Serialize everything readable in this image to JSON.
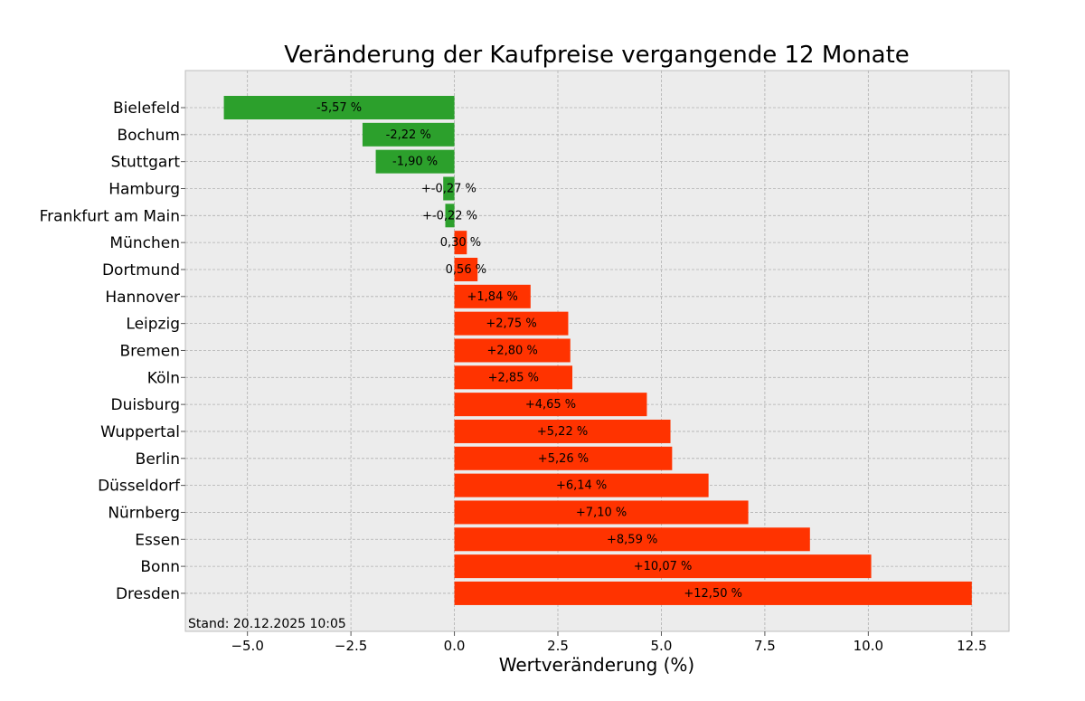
{
  "chart_data": {
    "type": "bar",
    "orientation": "horizontal",
    "title": "Veränderung der Kaufpreise vergangende 12 Monate",
    "xlabel": "Wertveränderung (%)",
    "ylabel": "",
    "xlim": [
      -6.5,
      13.4
    ],
    "xticks": [
      -5.0,
      -2.5,
      0.0,
      2.5,
      5.0,
      7.5,
      10.0,
      12.5
    ],
    "xtick_labels": [
      "−5.0",
      "−2.5",
      "0.0",
      "2.5",
      "5.0",
      "7.5",
      "10.0",
      "12.5"
    ],
    "grid": true,
    "categories": [
      "Bielefeld",
      "Bochum",
      "Stuttgart",
      "Hamburg",
      "Frankfurt am Main",
      "München",
      "Dortmund",
      "Hannover",
      "Leipzig",
      "Bremen",
      "Köln",
      "Duisburg",
      "Wuppertal",
      "Berlin",
      "Düsseldorf",
      "Nürnberg",
      "Essen",
      "Bonn",
      "Dresden"
    ],
    "values": [
      -5.57,
      -2.22,
      -1.9,
      -0.27,
      -0.22,
      0.3,
      0.56,
      1.84,
      2.75,
      2.8,
      2.85,
      4.65,
      5.22,
      5.26,
      6.14,
      7.1,
      8.59,
      10.07,
      12.5
    ],
    "data_labels": [
      "-5,57 %",
      "-2,22 %",
      "-1,90 %",
      "+-0,27 %",
      "+-0,22 %",
      "0,30 %",
      "0,56 %",
      "+1,84 %",
      "+2,75 %",
      "+2,80 %",
      "+2,85 %",
      "+4,65 %",
      "+5,22 %",
      "+5,26 %",
      "+6,14 %",
      "+7,10 %",
      "+8,59 %",
      "+10,07 %",
      "+12,50 %"
    ],
    "colors": {
      "negative": "#2ca02c",
      "positive": "#ff3300",
      "background": "#ececec",
      "grid": "#b0b0b0"
    },
    "footnote": "Stand: 20.12.2025 10:05"
  }
}
